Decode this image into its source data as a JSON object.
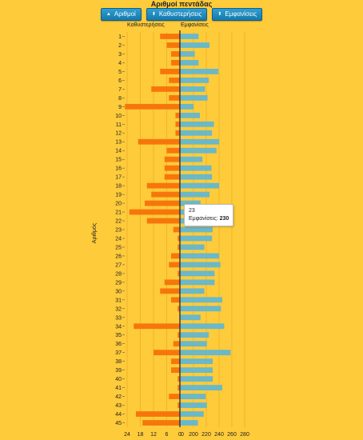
{
  "title": "Αριθμοί πεντάδας",
  "buttons": [
    {
      "label": "Αριθμοί",
      "icon": "sort-up-icon"
    },
    {
      "label": "Καθυστερήσεις",
      "icon": "sort-icon"
    },
    {
      "label": "Εμφανίσεις",
      "icon": "sort-icon"
    }
  ],
  "colors": {
    "delays": "#f7760b",
    "appearances": "#6ab8c8",
    "background": "#fecb3a",
    "axis": "#333333"
  },
  "chart_data": {
    "type": "bar",
    "orientation": "horizontal",
    "left_header": "Καθυστερήσεις",
    "right_header": "Εμφανίσεις",
    "ylabel": "Αριθμός",
    "left_ticks": [
      "24",
      "18",
      "12",
      "6",
      "0"
    ],
    "right_ticks": [
      "0",
      "200",
      "220",
      "240",
      "260",
      "280"
    ],
    "categories": [
      "1",
      "2",
      "3",
      "4",
      "5",
      "6",
      "7",
      "8",
      "9",
      "10",
      "11",
      "12",
      "13",
      "14",
      "15",
      "16",
      "17",
      "18",
      "19",
      "20",
      "21",
      "22",
      "23",
      "24",
      "25",
      "26",
      "27",
      "28",
      "29",
      "30",
      "31",
      "32",
      "33",
      "34",
      "35",
      "36",
      "37",
      "38",
      "39",
      "40",
      "41",
      "42",
      "43",
      "44",
      "45"
    ],
    "series": [
      {
        "name": "Καθυστερήσεις",
        "side": "left",
        "values": [
          9,
          6,
          4,
          4,
          9,
          5,
          13,
          5,
          25,
          2,
          2,
          2,
          19,
          6,
          7,
          7,
          7,
          15,
          13,
          16,
          23,
          15,
          3,
          1,
          1,
          4,
          5,
          1,
          7,
          9,
          4,
          1,
          0,
          21,
          1,
          3,
          12,
          4,
          4,
          1,
          1,
          5,
          1,
          20,
          17
        ]
      },
      {
        "name": "Εμφανίσεις",
        "side": "right",
        "values": [
          208,
          225,
          202,
          208,
          239,
          224,
          218,
          222,
          200,
          210,
          232,
          229,
          240,
          236,
          214,
          228,
          229,
          240,
          225,
          211,
          216,
          212,
          230,
          229,
          217,
          240,
          242,
          233,
          233,
          217,
          245,
          243,
          211,
          248,
          224,
          221,
          258,
          230,
          230,
          230,
          245,
          219,
          221,
          216,
          207
        ]
      }
    ],
    "tooltip": {
      "category": "23",
      "label": "Εμφανίσεις:",
      "value": "230"
    }
  }
}
